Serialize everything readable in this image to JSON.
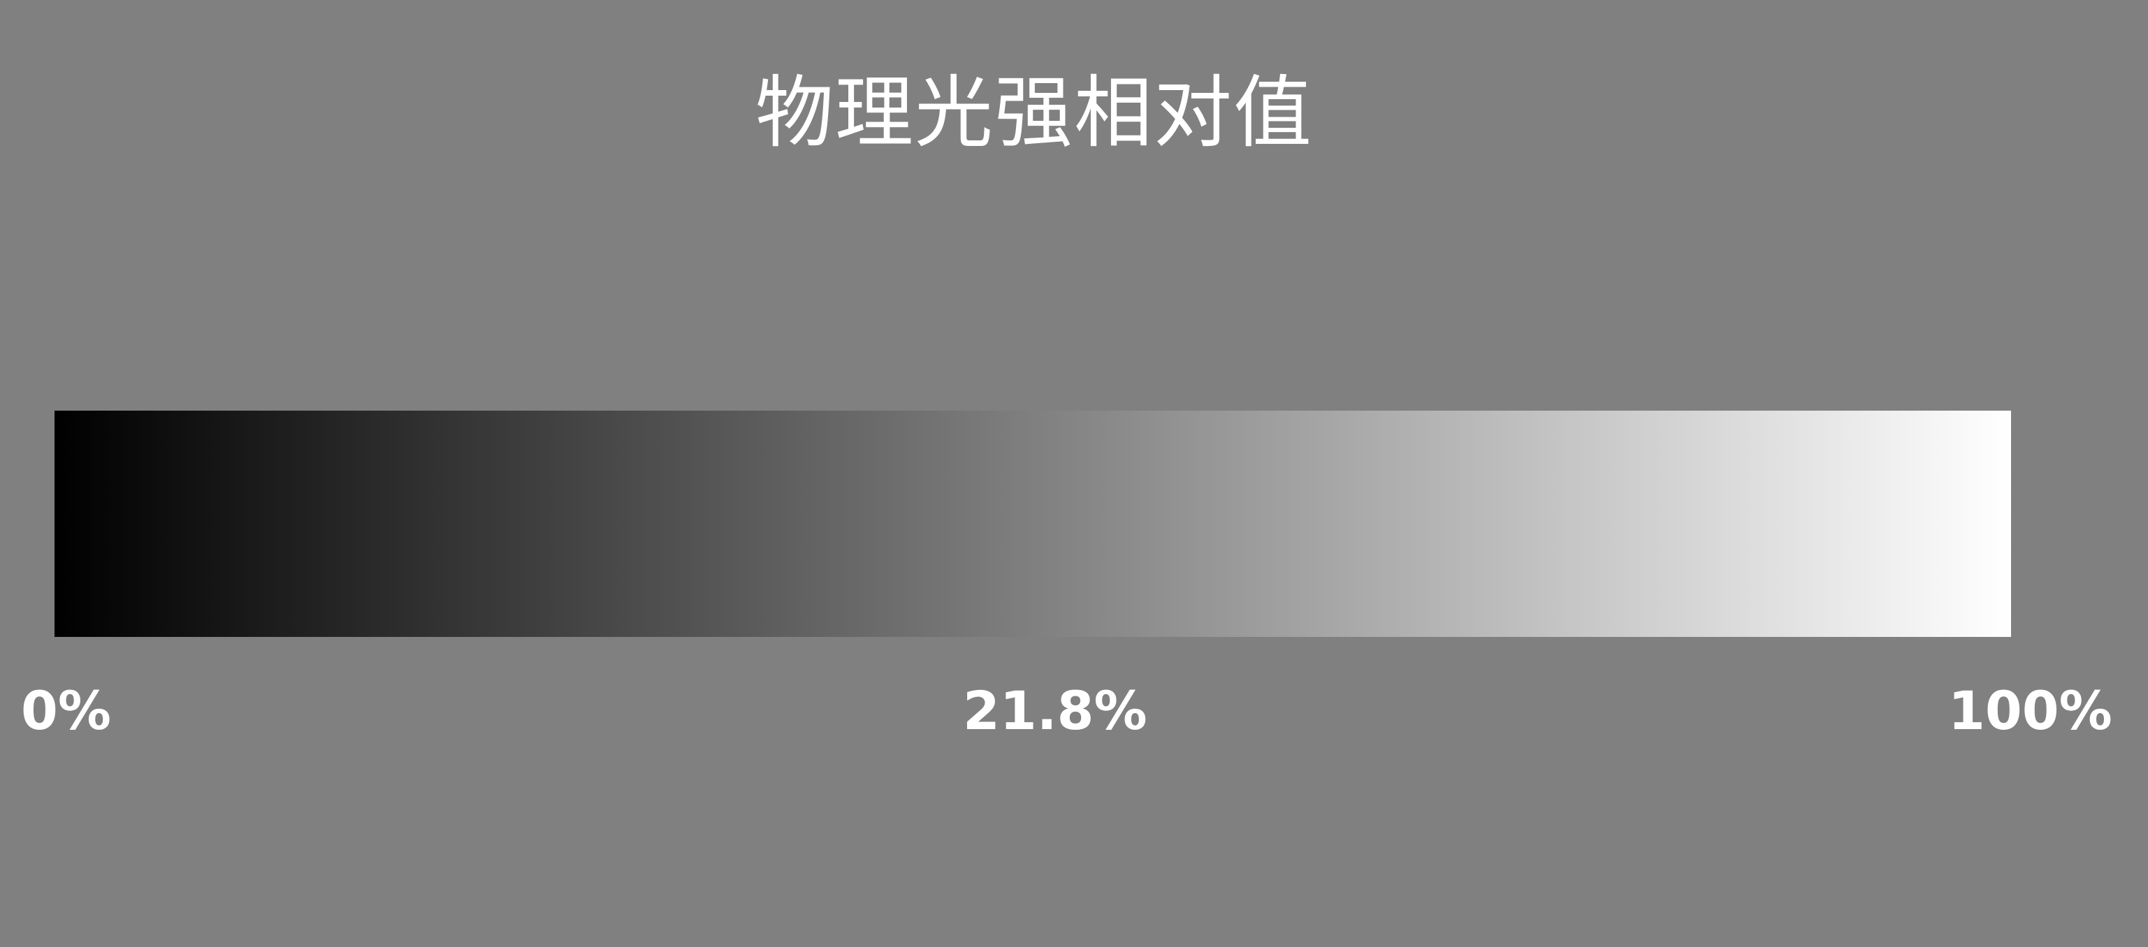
{
  "title": "物理光强相对值",
  "gradient": {
    "start_color": "#000000",
    "end_color": "#ffffff",
    "background_color": "#808080"
  },
  "labels": {
    "left": "0%",
    "middle": "21.8%",
    "right": "100%"
  }
}
